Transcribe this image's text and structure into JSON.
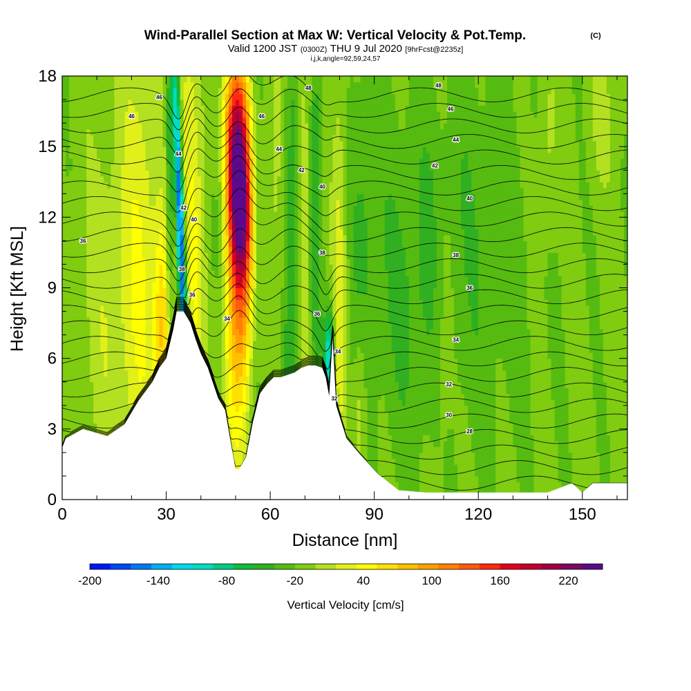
{
  "header": {
    "title": "Wind-Parallel Section at Max W: Vertical Velocity & Pot.Temp.",
    "copyright": "(C)",
    "subtitle_main": "Valid 1200 JST",
    "subtitle_utc": "(0300Z)",
    "subtitle_date": "THU 9 Jul 2020",
    "subtitle_fcst": "[9hrFcst@2235z]",
    "params": "i,j,k,angle=92,59,24,57"
  },
  "colorbar": {
    "label": "Vertical Velocity [cm/s]",
    "min": -200,
    "max": 250,
    "step": 20,
    "tick_labels": [
      "-200",
      "-140",
      "-80",
      "-20",
      "40",
      "100",
      "160",
      "220"
    ],
    "tick_values": [
      -200,
      -140,
      -80,
      -20,
      40,
      100,
      160,
      220
    ],
    "colors": [
      "#0016f5",
      "#0046f5",
      "#0078f5",
      "#00aef5",
      "#00d8e8",
      "#00ddc0",
      "#00cc80",
      "#10bb40",
      "#30b020",
      "#55bb10",
      "#7fcc10",
      "#b3e020",
      "#e2f01a",
      "#ffff00",
      "#ffe000",
      "#ffc000",
      "#ffa000",
      "#ff8000",
      "#ff5a10",
      "#ff2a10",
      "#e00020",
      "#c0002e",
      "#a00040",
      "#7a0a62",
      "#5a0a8a"
    ]
  },
  "chart_data": {
    "type": "heatmap",
    "xlabel": "Distance [nm]",
    "ylabel": "Height [Kft MSL]",
    "xlim": [
      0,
      163
    ],
    "ylim": [
      0,
      18
    ],
    "x_ticks": [
      0,
      30,
      60,
      90,
      120,
      150
    ],
    "y_ticks": [
      0,
      3,
      6,
      9,
      12,
      15,
      18
    ],
    "colorbar_var": "vertical velocity (cm/s)",
    "contour_var": "potential temperature",
    "terrain_profile": {
      "x": [
        0,
        1,
        6,
        13,
        18,
        22,
        26,
        28,
        30,
        32,
        33,
        35,
        37,
        38.5,
        40,
        42,
        45,
        47,
        49,
        50,
        51,
        53,
        55,
        57,
        59,
        61,
        63,
        65,
        67,
        69,
        71,
        73,
        75,
        76,
        77,
        78,
        79,
        82,
        86,
        91,
        97,
        105,
        120,
        140,
        147,
        150,
        153,
        163
      ],
      "height": [
        2.2,
        2.6,
        3.0,
        2.7,
        3.2,
        4.2,
        5.0,
        5.6,
        6.0,
        7.2,
        8.0,
        8.0,
        7.5,
        6.8,
        6.2,
        5.6,
        4.3,
        3.8,
        2.1,
        1.3,
        1.3,
        1.8,
        3.3,
        4.5,
        4.9,
        5.2,
        5.2,
        5.3,
        5.4,
        5.6,
        5.7,
        5.7,
        5.6,
        5.2,
        4.4,
        6.9,
        4.0,
        2.6,
        1.9,
        1.1,
        0.4,
        0.3,
        0.3,
        0.3,
        0.7,
        0.3,
        0.7,
        0.7
      ]
    },
    "theta_contour_labels": [
      {
        "text": "46",
        "x": 28,
        "y": 17.1
      },
      {
        "text": "46",
        "x": 20,
        "y": 16.3
      },
      {
        "text": "36",
        "x": 6,
        "y": 11.0
      },
      {
        "text": "44",
        "x": 33.5,
        "y": 14.7
      },
      {
        "text": "42",
        "x": 35,
        "y": 12.4
      },
      {
        "text": "40",
        "x": 38,
        "y": 11.9
      },
      {
        "text": "38",
        "x": 34.5,
        "y": 9.8
      },
      {
        "text": "36",
        "x": 37.5,
        "y": 8.7
      },
      {
        "text": "34",
        "x": 47.5,
        "y": 7.7
      },
      {
        "text": "46",
        "x": 57.5,
        "y": 16.3
      },
      {
        "text": "44",
        "x": 62.5,
        "y": 14.9
      },
      {
        "text": "48",
        "x": 71,
        "y": 17.5
      },
      {
        "text": "42",
        "x": 69,
        "y": 14.0
      },
      {
        "text": "40",
        "x": 75,
        "y": 13.3
      },
      {
        "text": "38",
        "x": 75,
        "y": 10.5
      },
      {
        "text": "36",
        "x": 73.5,
        "y": 7.9
      },
      {
        "text": "34",
        "x": 79.5,
        "y": 6.3
      },
      {
        "text": "32",
        "x": 78.5,
        "y": 4.3
      },
      {
        "text": "48",
        "x": 108.5,
        "y": 17.6
      },
      {
        "text": "46",
        "x": 112,
        "y": 16.6
      },
      {
        "text": "44",
        "x": 113.5,
        "y": 15.3
      },
      {
        "text": "42",
        "x": 107.5,
        "y": 14.2
      },
      {
        "text": "40",
        "x": 117.5,
        "y": 12.8
      },
      {
        "text": "38",
        "x": 113.5,
        "y": 10.4
      },
      {
        "text": "36",
        "x": 117.5,
        "y": 9.0
      },
      {
        "text": "34",
        "x": 113.5,
        "y": 6.8
      },
      {
        "text": "32",
        "x": 111.5,
        "y": 4.9
      },
      {
        "text": "30",
        "x": 111.5,
        "y": 3.6
      },
      {
        "text": "28",
        "x": 117.5,
        "y": 2.9
      }
    ],
    "updraft_cores": [
      {
        "x": 51,
        "y": 13.2,
        "value": 230
      },
      {
        "x": 36,
        "y": 11,
        "value": 90
      },
      {
        "x": 29,
        "y": 7,
        "value": 110
      }
    ],
    "downdraft_cores": [
      {
        "x": 34,
        "y": 12,
        "value": -150
      },
      {
        "x": 77,
        "y": 6.2,
        "value": -110
      }
    ]
  }
}
